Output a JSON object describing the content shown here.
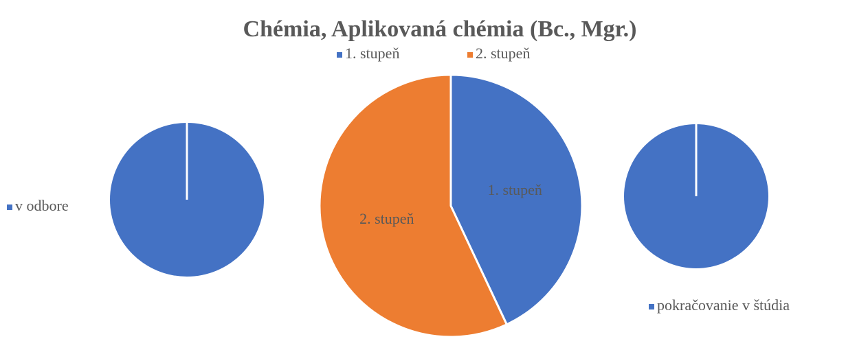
{
  "chart_data": [
    {
      "type": "pie",
      "categories": [
        "v odbore"
      ],
      "values": [
        100
      ],
      "colors": [
        "#4472c4"
      ],
      "legend": "left"
    },
    {
      "type": "pie",
      "title": "Chémia, Aplikovaná chémia (Bc., Mgr.)",
      "categories": [
        "1. stupeň",
        "2. stupeň"
      ],
      "values": [
        43,
        57
      ],
      "colors": [
        "#4472c4",
        "#ed7d31"
      ],
      "legend": "top",
      "data_labels": true
    },
    {
      "type": "pie",
      "categories": [
        "pokračovanie v štúdia"
      ],
      "values": [
        100
      ],
      "colors": [
        "#4472c4"
      ],
      "legend": "bottom-right"
    }
  ]
}
